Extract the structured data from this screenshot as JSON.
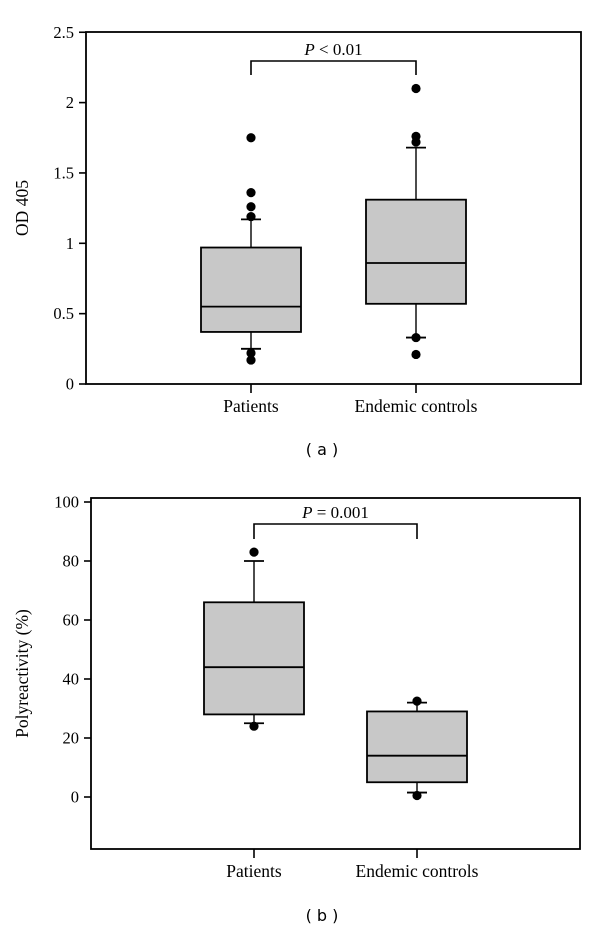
{
  "page": {
    "background": "#ffffff",
    "text_color": "#000000"
  },
  "chart_data": [
    {
      "panel": "a",
      "type": "box",
      "caption": "( a )",
      "ylabel": "OD 405",
      "xlabel": "",
      "categories": [
        "Patients",
        "Endemic controls"
      ],
      "ytick_labels": [
        "0",
        "0.5",
        "1",
        "1.5",
        "2",
        "2.5"
      ],
      "ytick_values": [
        0,
        0.5,
        1,
        1.5,
        2,
        2.5
      ],
      "ylim": [
        0,
        2.5
      ],
      "grid": "off",
      "annotation": "P < 0.01",
      "series": [
        {
          "name": "Patients",
          "q1": 0.37,
          "median": 0.55,
          "q3": 0.97,
          "whisker_low": 0.25,
          "whisker_high": 1.17,
          "outliers": [
            0.17,
            0.22,
            1.19,
            1.26,
            1.36,
            1.75
          ]
        },
        {
          "name": "Endemic controls",
          "q1": 0.57,
          "median": 0.86,
          "q3": 1.31,
          "whisker_low": 0.33,
          "whisker_high": 1.68,
          "outliers": [
            0.21,
            0.33,
            1.72,
            1.76,
            2.1
          ]
        }
      ],
      "colors": {
        "box_fill": "#c8c8c8",
        "line": "#000000"
      }
    },
    {
      "panel": "b",
      "type": "box",
      "caption": "( b )",
      "ylabel": "Polyreactivity (%)",
      "xlabel": "",
      "categories": [
        "Patients",
        "Endemic controls"
      ],
      "ytick_labels": [
        "0",
        "20",
        "40",
        "60",
        "80",
        "100"
      ],
      "ytick_values": [
        0,
        20,
        40,
        60,
        80,
        100
      ],
      "ylim": [
        0,
        100
      ],
      "grid": "off",
      "annotation": "P = 0.001",
      "series": [
        {
          "name": "Patients",
          "q1": 28,
          "median": 44,
          "q3": 66,
          "whisker_low": 25,
          "whisker_high": 80,
          "outliers": [
            24,
            83
          ]
        },
        {
          "name": "Endemic controls",
          "q1": 5,
          "median": 14,
          "q3": 29,
          "whisker_low": 1.5,
          "whisker_high": 32,
          "outliers": [
            0.5,
            32.5
          ]
        }
      ],
      "colors": {
        "box_fill": "#c8c8c8",
        "line": "#000000"
      }
    }
  ]
}
